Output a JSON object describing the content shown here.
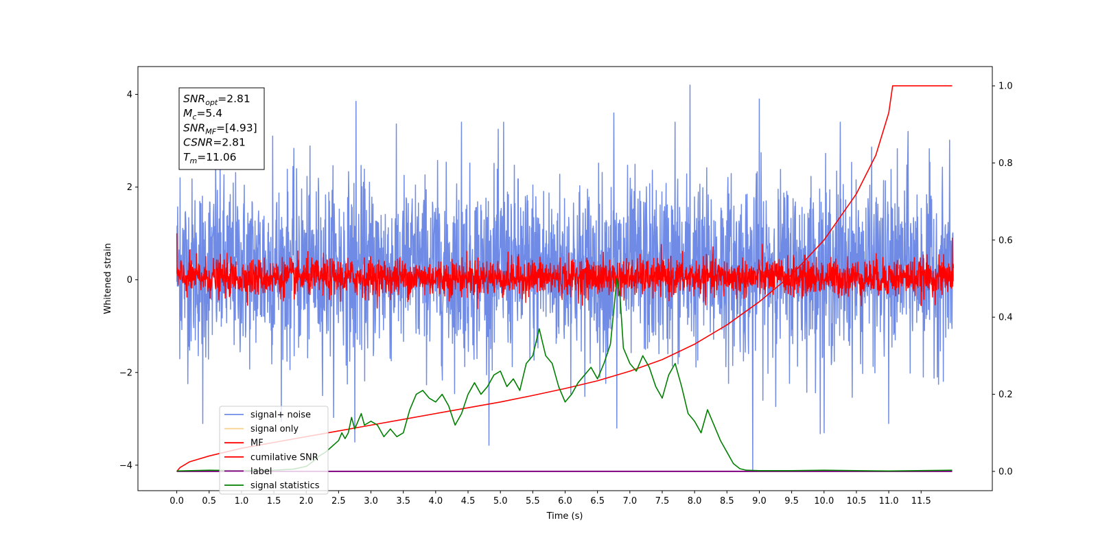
{
  "chart_data": {
    "type": "line",
    "xlabel": "Time (s)",
    "ylabel": "Whitened strain",
    "xlim": [
      -0.6,
      12.6
    ],
    "ylim": [
      -4.55,
      4.6
    ],
    "y2lim": [
      -0.05,
      1.05
    ],
    "x_ticks": [
      0.0,
      0.5,
      1.0,
      1.5,
      2.0,
      2.5,
      3.0,
      3.5,
      4.0,
      4.5,
      5.0,
      5.5,
      6.0,
      6.5,
      7.0,
      7.5,
      8.0,
      8.5,
      9.0,
      9.5,
      10.0,
      10.5,
      11.0,
      11.5
    ],
    "x_tick_labels": [
      "0.0",
      "0.5",
      "1.0",
      "1.5",
      "2.0",
      "2.5",
      "3.0",
      "3.5",
      "4.0",
      "4.5",
      "5.0",
      "5.5",
      "6.0",
      "6.5",
      "7.0",
      "7.5",
      "8.0",
      "8.5",
      "9.0",
      "9.5",
      "10.0",
      "10.5",
      "11.0",
      "11.5"
    ],
    "y_ticks": [
      -4,
      -2,
      0,
      2,
      4
    ],
    "y_tick_labels": [
      "−4",
      "−2",
      "0",
      "2",
      "4"
    ],
    "y2_ticks": [
      0.0,
      0.2,
      0.4,
      0.6,
      0.8,
      1.0
    ],
    "y2_tick_labels": [
      "0.0",
      "0.2",
      "0.4",
      "0.6",
      "0.8",
      "1.0"
    ],
    "grid": false,
    "legend_placement": "lower-left",
    "legend": [
      {
        "label": "signal+ noise",
        "color": "#6f8be6"
      },
      {
        "label": "signal only",
        "color": "#f7d08a"
      },
      {
        "label": "MF",
        "color": "#ff0000"
      },
      {
        "label": "cumilative SNR",
        "color": "#ff0000"
      },
      {
        "label": "label",
        "color": "#800080"
      },
      {
        "label": "signal statistics",
        "color": "#008000"
      }
    ],
    "annotation": [
      {
        "base": "SNR",
        "sub": "opt",
        "rest": "=2.81"
      },
      {
        "base": "M",
        "sub": "c",
        "rest": "=5.4"
      },
      {
        "base": "SNR",
        "sub": "MF",
        "rest": "=[4.93]"
      },
      {
        "base": "CSNR",
        "sub": "",
        "rest": "=2.81"
      },
      {
        "base": "T",
        "sub": "m",
        "rest": "=11.06"
      }
    ],
    "series": [
      {
        "name": "signal+ noise",
        "axis": "left",
        "color": "#6f8be6",
        "x_range": [
          0.0,
          12.0
        ],
        "center": 0.25,
        "amplitude_sd": 0.95,
        "peaks": [
          {
            "x": 0.05,
            "y": 2.2
          },
          {
            "x": 0.6,
            "y": 2.5
          },
          {
            "x": 1.48,
            "y": 3.1
          },
          {
            "x": 2.77,
            "y": 3.85
          },
          {
            "x": 4.4,
            "y": 3.4
          },
          {
            "x": 5.05,
            "y": 3.4
          },
          {
            "x": 6.75,
            "y": 3.6
          },
          {
            "x": 7.7,
            "y": 3.4
          },
          {
            "x": 7.93,
            "y": 4.2
          },
          {
            "x": 9.0,
            "y": 3.9
          },
          {
            "x": 10.25,
            "y": 3.4
          },
          {
            "x": 11.3,
            "y": 3.2
          }
        ],
        "troughs": [
          {
            "x": 0.4,
            "y": -3.1
          },
          {
            "x": 2.75,
            "y": -3.5
          },
          {
            "x": 6.8,
            "y": -3.2
          },
          {
            "x": 8.9,
            "y": -4.1
          },
          {
            "x": 10.0,
            "y": -3.3
          },
          {
            "x": 11.0,
            "y": -3.1
          }
        ]
      },
      {
        "name": "MF",
        "axis": "left",
        "color": "#ff0000",
        "x_range": [
          0.0,
          12.0
        ],
        "center": 0.05,
        "amplitude_sd": 0.2,
        "endpoints": [
          {
            "x": 0.0,
            "y": 1.0
          },
          {
            "x": 11.98,
            "y": 0.9
          }
        ]
      },
      {
        "name": "cumilative SNR",
        "axis": "right",
        "color": "#ff0000",
        "points": [
          [
            0.0,
            0.0
          ],
          [
            0.05,
            0.01
          ],
          [
            0.2,
            0.025
          ],
          [
            0.5,
            0.04
          ],
          [
            1.0,
            0.06
          ],
          [
            1.5,
            0.075
          ],
          [
            2.0,
            0.09
          ],
          [
            2.5,
            0.105
          ],
          [
            3.0,
            0.12
          ],
          [
            3.5,
            0.135
          ],
          [
            4.0,
            0.15
          ],
          [
            4.5,
            0.165
          ],
          [
            5.0,
            0.18
          ],
          [
            5.5,
            0.197
          ],
          [
            6.0,
            0.215
          ],
          [
            6.5,
            0.235
          ],
          [
            7.0,
            0.26
          ],
          [
            7.5,
            0.29
          ],
          [
            8.0,
            0.33
          ],
          [
            8.5,
            0.38
          ],
          [
            9.0,
            0.44
          ],
          [
            9.5,
            0.51
          ],
          [
            10.0,
            0.6
          ],
          [
            10.5,
            0.72
          ],
          [
            10.8,
            0.82
          ],
          [
            11.0,
            0.93
          ],
          [
            11.06,
            1.0
          ],
          [
            11.98,
            1.0
          ]
        ]
      },
      {
        "name": "label",
        "axis": "right",
        "color": "#800080",
        "points": [
          [
            0.0,
            0.0
          ],
          [
            11.98,
            0.0
          ]
        ]
      },
      {
        "name": "signal statistics",
        "axis": "right",
        "color": "#008000",
        "points": [
          [
            0.0,
            0.001
          ],
          [
            0.5,
            0.003
          ],
          [
            1.0,
            0.002
          ],
          [
            1.5,
            0.003
          ],
          [
            1.8,
            0.006
          ],
          [
            2.0,
            0.013
          ],
          [
            2.1,
            0.025
          ],
          [
            2.2,
            0.04
          ],
          [
            2.3,
            0.05
          ],
          [
            2.4,
            0.065
          ],
          [
            2.5,
            0.08
          ],
          [
            2.55,
            0.1
          ],
          [
            2.6,
            0.085
          ],
          [
            2.65,
            0.1
          ],
          [
            2.7,
            0.14
          ],
          [
            2.75,
            0.11
          ],
          [
            2.8,
            0.13
          ],
          [
            2.85,
            0.15
          ],
          [
            2.9,
            0.12
          ],
          [
            3.0,
            0.13
          ],
          [
            3.1,
            0.12
          ],
          [
            3.2,
            0.09
          ],
          [
            3.3,
            0.11
          ],
          [
            3.4,
            0.09
          ],
          [
            3.5,
            0.1
          ],
          [
            3.6,
            0.16
          ],
          [
            3.7,
            0.2
          ],
          [
            3.8,
            0.21
          ],
          [
            3.9,
            0.19
          ],
          [
            4.0,
            0.18
          ],
          [
            4.1,
            0.2
          ],
          [
            4.2,
            0.17
          ],
          [
            4.3,
            0.12
          ],
          [
            4.4,
            0.15
          ],
          [
            4.5,
            0.2
          ],
          [
            4.6,
            0.23
          ],
          [
            4.7,
            0.2
          ],
          [
            4.8,
            0.22
          ],
          [
            4.9,
            0.25
          ],
          [
            5.0,
            0.26
          ],
          [
            5.1,
            0.22
          ],
          [
            5.2,
            0.24
          ],
          [
            5.3,
            0.21
          ],
          [
            5.4,
            0.28
          ],
          [
            5.5,
            0.3
          ],
          [
            5.6,
            0.37
          ],
          [
            5.7,
            0.3
          ],
          [
            5.8,
            0.28
          ],
          [
            5.9,
            0.22
          ],
          [
            6.0,
            0.18
          ],
          [
            6.1,
            0.2
          ],
          [
            6.2,
            0.23
          ],
          [
            6.3,
            0.25
          ],
          [
            6.4,
            0.27
          ],
          [
            6.5,
            0.24
          ],
          [
            6.6,
            0.28
          ],
          [
            6.7,
            0.33
          ],
          [
            6.8,
            0.5
          ],
          [
            6.85,
            0.45
          ],
          [
            6.9,
            0.32
          ],
          [
            7.0,
            0.28
          ],
          [
            7.1,
            0.26
          ],
          [
            7.2,
            0.3
          ],
          [
            7.3,
            0.27
          ],
          [
            7.4,
            0.22
          ],
          [
            7.5,
            0.19
          ],
          [
            7.6,
            0.25
          ],
          [
            7.7,
            0.28
          ],
          [
            7.8,
            0.22
          ],
          [
            7.9,
            0.15
          ],
          [
            8.0,
            0.13
          ],
          [
            8.1,
            0.1
          ],
          [
            8.2,
            0.16
          ],
          [
            8.3,
            0.12
          ],
          [
            8.4,
            0.08
          ],
          [
            8.5,
            0.05
          ],
          [
            8.6,
            0.02
          ],
          [
            8.7,
            0.007
          ],
          [
            8.8,
            0.003
          ],
          [
            9.0,
            0.002
          ],
          [
            9.5,
            0.002
          ],
          [
            10.0,
            0.003
          ],
          [
            10.5,
            0.002
          ],
          [
            11.0,
            0.001
          ],
          [
            11.98,
            0.003
          ]
        ]
      }
    ]
  }
}
